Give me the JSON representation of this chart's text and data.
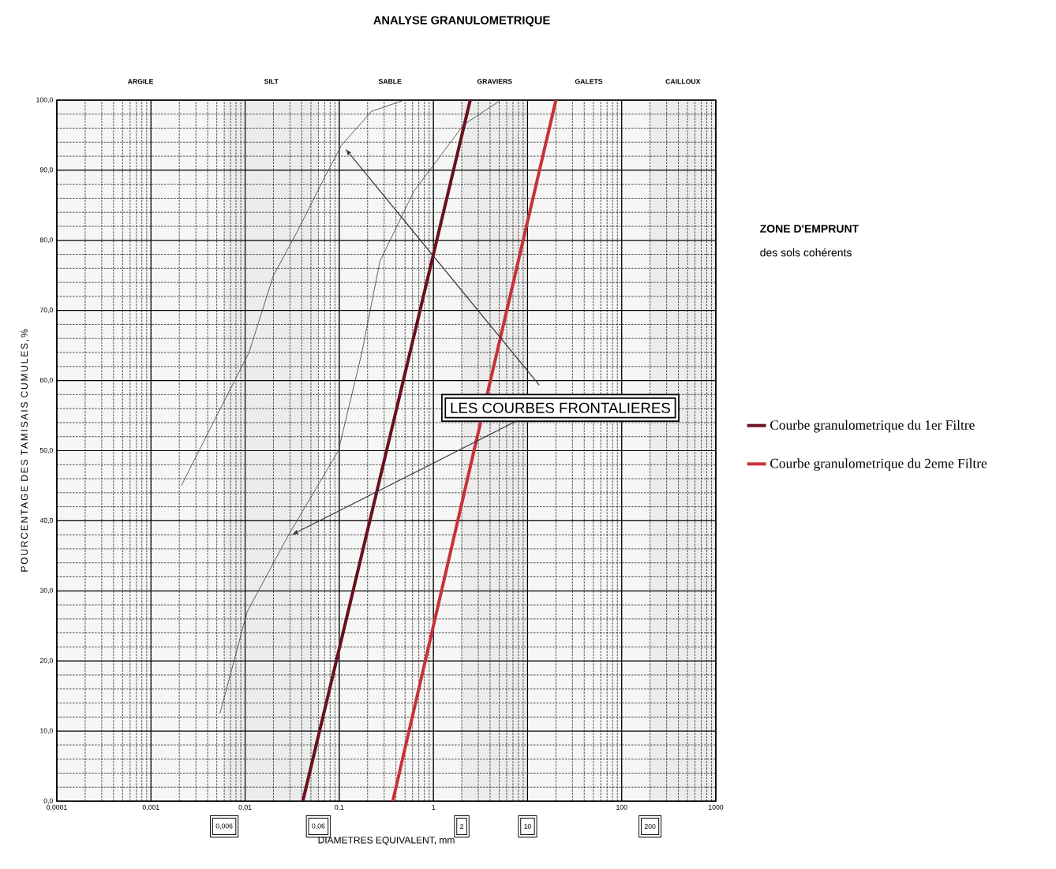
{
  "chart_data": {
    "type": "line",
    "title": "ANALYSE GRANULOMETRIQUE",
    "xlabel": "DIAMETRES EQUIVALENT, mm",
    "ylabel": "POURCENTAGE DES TAMISAIS CUMULES,%",
    "log": "x",
    "grid": true,
    "legend": "right",
    "xlim": [
      0.0001,
      1000
    ],
    "ylim": [
      0,
      100
    ],
    "xticks": [
      {
        "value": 0.0001,
        "label": "0,0001"
      },
      {
        "value": 0.001,
        "label": "0,001"
      },
      {
        "value": 0.01,
        "label": "0,01"
      },
      {
        "value": 0.1,
        "label": "0,1"
      },
      1,
      {
        "value": 10,
        "label": null
      },
      100,
      1000
    ],
    "yticks": [
      {
        "value": 0,
        "label": "0,0"
      },
      {
        "value": 10,
        "label": "10,0"
      },
      {
        "value": 20,
        "label": "20,0"
      },
      {
        "value": 30,
        "label": "30,0"
      },
      {
        "value": 40,
        "label": "40,0"
      },
      {
        "value": 50,
        "label": "50,0"
      },
      {
        "value": 60,
        "label": "60,0"
      },
      {
        "value": 70,
        "label": "70,0"
      },
      {
        "value": 80,
        "label": "80,0"
      },
      {
        "value": 90,
        "label": "90,0"
      },
      {
        "value": 100,
        "label": "100,0"
      }
    ],
    "series": [
      {
        "color": "#3a3a3a",
        "x": [
          0.0021,
          0.005,
          0.011,
          0.02,
          0.035,
          0.07,
          0.105,
          0.22,
          0.49
        ],
        "values": [
          45,
          55,
          64,
          75,
          81,
          89,
          93.5,
          98.4,
          100
        ]
      },
      {
        "color": "#3a3a3a",
        "x": [
          0.0054,
          0.0105,
          0.029,
          0.098,
          0.174,
          0.27,
          0.62,
          2.1,
          5.2
        ],
        "values": [
          12.5,
          27,
          38,
          50,
          64,
          77,
          87,
          96.5,
          100
        ]
      },
      {
        "name": "Courbe granulometrique du 1er Filtre",
        "color": "#6b1020",
        "x": [
          0.041,
          0.22,
          2.46
        ],
        "values": [
          0,
          41,
          100
        ]
      },
      {
        "name": "Courbe granulometrique du 2eme Filtre",
        "color": "#c8323a",
        "x": [
          0.37,
          2.7,
          20
        ],
        "values": [
          0,
          50,
          100
        ]
      }
    ],
    "bands": [
      {
        "axis": "x",
        "from": 0.0001,
        "to": 0.006,
        "label": "ARGILE",
        "color": "#f6f6f6"
      },
      {
        "axis": "x",
        "from": 0.006,
        "to": 0.06,
        "label": "SILT",
        "color": "#ececec"
      },
      {
        "axis": "x",
        "from": 0.06,
        "to": 2,
        "label": "SABLE",
        "color": "#f6f6f6"
      },
      {
        "axis": "x",
        "from": 2,
        "to": 10,
        "label": "GRAVIERS",
        "color": "#ececec"
      },
      {
        "axis": "x",
        "from": 10,
        "to": 200,
        "label": "GALETS",
        "color": "#f6f6f6"
      },
      {
        "axis": "x",
        "from": 200,
        "to": 1000,
        "label": "CAILLOUX",
        "color": "#ececec"
      }
    ],
    "annotations": [
      "LES COURBES FRONTALIERES",
      "ZONE D'EMPRUNT",
      "des sols cohérents",
      "0,006",
      "0,06",
      "2",
      "10",
      "200"
    ]
  }
}
